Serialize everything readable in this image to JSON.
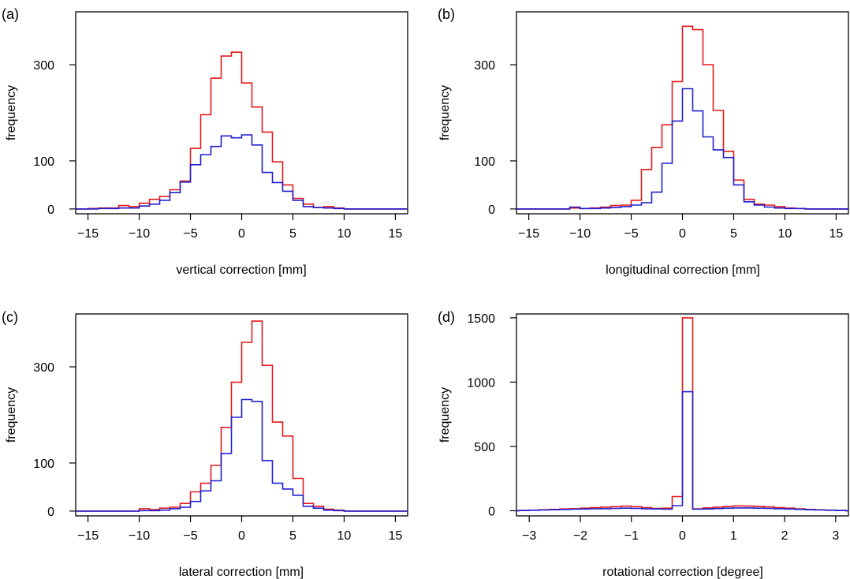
{
  "colors": {
    "red_series": "#e31a1c",
    "blue_series": "#1f1fd1",
    "axis": "#000000"
  },
  "chart_data": [
    {
      "type": "histogram",
      "panel_label": "(a)",
      "xlabel": "vertical correction [mm]",
      "ylabel": "frequency",
      "xlim": [
        -16.2,
        16.2
      ],
      "ylim": [
        -10,
        410
      ],
      "xticks": [
        -15,
        -10,
        -5,
        0,
        5,
        10,
        15
      ],
      "xtick_labels": [
        "−15",
        "−10",
        "−5",
        "0",
        "5",
        "10",
        "15"
      ],
      "yticks": [
        0,
        100,
        300
      ],
      "ytick_labels": [
        "0",
        "100",
        "300"
      ],
      "bin_edges": [
        -16,
        -15,
        -14,
        -13,
        -12,
        -11,
        -10,
        -9,
        -8,
        -7,
        -6,
        -5,
        -4,
        -3,
        -2,
        -1,
        0,
        1,
        2,
        3,
        4,
        5,
        6,
        7,
        8,
        9,
        10,
        11,
        12,
        13,
        14,
        15,
        16
      ],
      "series": [
        {
          "name": "red",
          "color": "#e31a1c",
          "values": [
            0,
            1,
            2,
            2,
            7,
            5,
            12,
            20,
            26,
            40,
            58,
            126,
            196,
            272,
            318,
            326,
            262,
            212,
            160,
            98,
            50,
            22,
            10,
            3,
            5,
            2,
            0,
            0,
            0,
            0,
            0,
            0
          ]
        },
        {
          "name": "blue",
          "color": "#1f1fd1",
          "values": [
            0,
            0,
            1,
            1,
            2,
            2,
            6,
            10,
            18,
            34,
            56,
            92,
            113,
            130,
            152,
            148,
            154,
            133,
            76,
            55,
            37,
            18,
            5,
            3,
            2,
            1,
            0,
            0,
            0,
            0,
            0,
            0
          ]
        }
      ]
    },
    {
      "type": "histogram",
      "panel_label": "(b)",
      "xlabel": "longitudinal correction [mm]",
      "ylabel": "frequency",
      "xlim": [
        -16.2,
        16.2
      ],
      "ylim": [
        -10,
        410
      ],
      "xticks": [
        -15,
        -10,
        -5,
        0,
        5,
        10,
        15
      ],
      "xtick_labels": [
        "−15",
        "−10",
        "−5",
        "0",
        "5",
        "10",
        "15"
      ],
      "yticks": [
        0,
        100,
        300
      ],
      "ytick_labels": [
        "0",
        "100",
        "300"
      ],
      "bin_edges": [
        -16,
        -15,
        -14,
        -13,
        -12,
        -11,
        -10,
        -9,
        -8,
        -7,
        -6,
        -5,
        -4,
        -3,
        -2,
        -1,
        0,
        1,
        2,
        3,
        4,
        5,
        6,
        7,
        8,
        9,
        10,
        11,
        12,
        13,
        14,
        15,
        16
      ],
      "series": [
        {
          "name": "red",
          "color": "#e31a1c",
          "values": [
            0,
            0,
            0,
            0,
            0,
            2,
            1,
            2,
            4,
            7,
            8,
            18,
            82,
            128,
            175,
            265,
            380,
            373,
            300,
            205,
            120,
            60,
            20,
            10,
            8,
            5,
            2,
            1,
            0,
            0,
            0,
            0
          ]
        },
        {
          "name": "blue",
          "color": "#1f1fd1",
          "values": [
            0,
            0,
            0,
            0,
            0,
            4,
            1,
            1,
            2,
            3,
            5,
            8,
            13,
            35,
            95,
            183,
            250,
            204,
            150,
            123,
            107,
            50,
            15,
            8,
            4,
            2,
            1,
            1,
            0,
            0,
            0,
            0
          ]
        }
      ]
    },
    {
      "type": "histogram",
      "panel_label": "(c)",
      "xlabel": "lateral correction [mm]",
      "ylabel": "frequency",
      "xlim": [
        -16.2,
        16.2
      ],
      "ylim": [
        -10,
        410
      ],
      "xticks": [
        -15,
        -10,
        -5,
        0,
        5,
        10,
        15
      ],
      "xtick_labels": [
        "−15",
        "−10",
        "−5",
        "0",
        "5",
        "10",
        "15"
      ],
      "yticks": [
        0,
        100,
        300
      ],
      "ytick_labels": [
        "0",
        "100",
        "300"
      ],
      "bin_edges": [
        -16,
        -15,
        -14,
        -13,
        -12,
        -11,
        -10,
        -9,
        -8,
        -7,
        -6,
        -5,
        -4,
        -3,
        -2,
        -1,
        0,
        1,
        2,
        3,
        4,
        5,
        6,
        7,
        8,
        9,
        10,
        11,
        12,
        13,
        14,
        15,
        16
      ],
      "series": [
        {
          "name": "red",
          "color": "#e31a1c",
          "values": [
            0,
            0,
            0,
            0,
            0,
            0,
            5,
            3,
            6,
            8,
            16,
            40,
            58,
            95,
            174,
            268,
            351,
            395,
            303,
            185,
            156,
            68,
            16,
            10,
            4,
            2,
            0,
            0,
            0,
            0,
            0,
            0
          ]
        },
        {
          "name": "blue",
          "color": "#1f1fd1",
          "values": [
            0,
            0,
            0,
            0,
            0,
            0,
            1,
            1,
            2,
            5,
            8,
            20,
            42,
            63,
            120,
            195,
            232,
            228,
            105,
            58,
            46,
            33,
            10,
            6,
            2,
            1,
            0,
            0,
            0,
            0,
            0,
            0
          ]
        }
      ]
    },
    {
      "type": "histogram",
      "panel_label": "(d)",
      "xlabel": "rotational correction [degree]",
      "ylabel": "frequency",
      "xlim": [
        -3.25,
        3.25
      ],
      "ylim": [
        -40,
        1530
      ],
      "xticks": [
        -3,
        -2,
        -1,
        0,
        1,
        2,
        3
      ],
      "xtick_labels": [
        "−3",
        "−2",
        "−1",
        "0",
        "1",
        "2",
        "3"
      ],
      "yticks": [
        0,
        500,
        1000,
        1500
      ],
      "ytick_labels": [
        "0",
        "500",
        "1000",
        "1500"
      ],
      "bin_edges": [
        -3.2,
        -3.0,
        -2.8,
        -2.6,
        -2.4,
        -2.2,
        -2.0,
        -1.8,
        -1.6,
        -1.4,
        -1.2,
        -1.0,
        -0.8,
        -0.6,
        -0.4,
        -0.2,
        0.0,
        0.2,
        0.4,
        0.6,
        0.8,
        1.0,
        1.2,
        1.4,
        1.6,
        1.8,
        2.0,
        2.2,
        2.4,
        2.6,
        2.8,
        3.0,
        3.2
      ],
      "series": [
        {
          "name": "red",
          "color": "#e31a1c",
          "values": [
            3,
            5,
            8,
            10,
            14,
            16,
            20,
            24,
            28,
            32,
            36,
            32,
            24,
            18,
            20,
            110,
            1500,
            15,
            22,
            28,
            33,
            38,
            36,
            34,
            30,
            24,
            20,
            15,
            10,
            7,
            5,
            3
          ]
        },
        {
          "name": "blue",
          "color": "#1f1fd1",
          "values": [
            2,
            4,
            6,
            8,
            10,
            12,
            14,
            15,
            16,
            18,
            20,
            18,
            16,
            14,
            12,
            40,
            925,
            12,
            14,
            17,
            20,
            22,
            22,
            20,
            18,
            16,
            14,
            11,
            8,
            6,
            4,
            2
          ]
        }
      ]
    }
  ]
}
